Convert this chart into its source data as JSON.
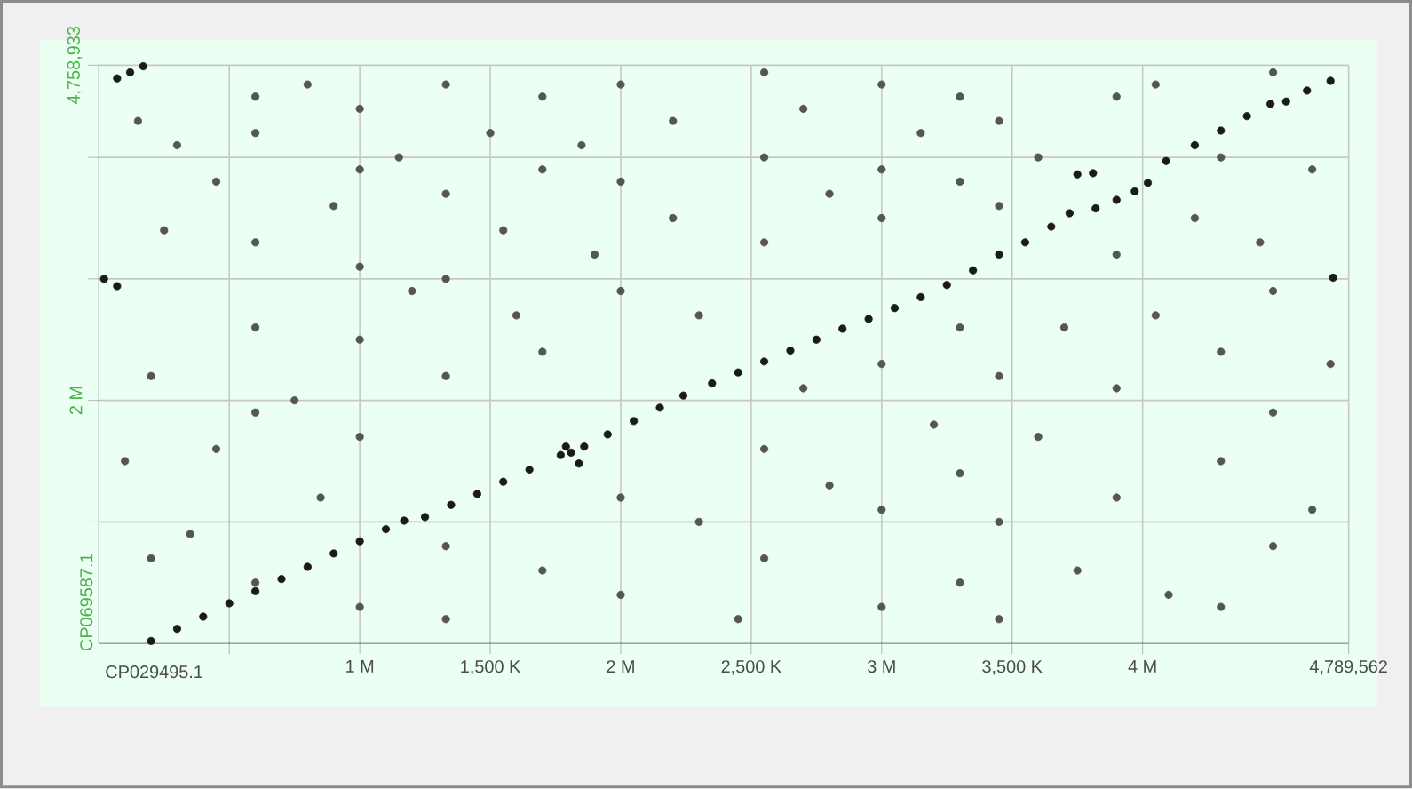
{
  "chart_data": {
    "type": "scatter",
    "xlabel": "CP029495.1",
    "ylabel": "CP069587.1",
    "xlim": [
      0,
      4789562
    ],
    "ylim": [
      0,
      4758933
    ],
    "xticks": [
      {
        "value": 500000,
        "label": null
      },
      {
        "value": 1000000,
        "label": "1 M"
      },
      {
        "value": 1500000,
        "label": "1,500 K"
      },
      {
        "value": 2000000,
        "label": "2 M"
      },
      {
        "value": 2500000,
        "label": "2,500 K"
      },
      {
        "value": 3000000,
        "label": "3 M"
      },
      {
        "value": 3500000,
        "label": "3,500 K"
      },
      {
        "value": 4000000,
        "label": "4 M"
      },
      {
        "value": 4789562,
        "label": "4,789,562"
      }
    ],
    "yticks": [
      {
        "value": 1000000,
        "label": null
      },
      {
        "value": 2000000,
        "label": "2 M"
      },
      {
        "value": 3000000,
        "label": null
      },
      {
        "value": 4000000,
        "label": null
      },
      {
        "value": 4758933,
        "label": "4,758,933"
      }
    ],
    "grid": true,
    "marker": "circle",
    "series": [
      {
        "color": "#555555",
        "x": [
          150000.0,
          300000.0,
          450000.0,
          600000.0,
          600000.0,
          600000.0,
          600000.0,
          600000.0,
          600000.0,
          800000.0,
          900000.0,
          1000000.0,
          1000000.0,
          1000000.0,
          1000000.0,
          1000000.0,
          1000000.0,
          1150000.0,
          1200000.0,
          1330000.0,
          1330000.0,
          1330000.0,
          1330000.0,
          1330000.0,
          1330000.0,
          1500000.0,
          1550000.0,
          1600000.0,
          1700000.0,
          1700000.0,
          1700000.0,
          1700000.0,
          1850000.0,
          1900000.0,
          2000000.0,
          2000000.0,
          2000000.0,
          2000000.0,
          2000000.0,
          2200000.0,
          2200000.0,
          2300000.0,
          2300000.0,
          2450000.0,
          2550000.0,
          2550000.0,
          2550000.0,
          2550000.0,
          2550000.0,
          2700000.0,
          2700000.0,
          2800000.0,
          2800000.0,
          3000000.0,
          3000000.0,
          3000000.0,
          3000000.0,
          3000000.0,
          3000000.0,
          3150000.0,
          3200000.0,
          3300000.0,
          3300000.0,
          3300000.0,
          3300000.0,
          3300000.0,
          3450000.0,
          3450000.0,
          3450000.0,
          3450000.0,
          3450000.0,
          3600000.0,
          3600000.0,
          3700000.0,
          3750000.0,
          3900000.0,
          3900000.0,
          3900000.0,
          3900000.0,
          4050000.0,
          4050000.0,
          4100000.0,
          4200000.0,
          4300000.0,
          4300000.0,
          4300000.0,
          4300000.0,
          4450000.0,
          4500000.0,
          4500000.0,
          4500000.0,
          4500000.0,
          4650000.0,
          4650000.0,
          4720000.0,
          100000.0,
          200000.0,
          250000.0,
          350000.0,
          450000.0,
          750000.0,
          850000.0,
          200000.0
        ],
        "values": [
          4300000.0,
          4100000.0,
          3800000.0,
          4500000.0,
          4200000.0,
          3300000.0,
          2600000.0,
          1900000.0,
          500000.0,
          4600000.0,
          3600000.0,
          4400000.0,
          3900000.0,
          3100000.0,
          2500000.0,
          1700000.0,
          300000.0,
          4000000.0,
          2900000.0,
          4600000.0,
          3700000.0,
          3000000.0,
          2200000.0,
          800000.0,
          200000.0,
          4200000.0,
          3400000.0,
          2700000.0,
          4500000.0,
          3900000.0,
          2400000.0,
          600000.0,
          4100000.0,
          3200000.0,
          4600000.0,
          3800000.0,
          2900000.0,
          1200000.0,
          400000.0,
          4300000.0,
          3500000.0,
          2700000.0,
          1000000.0,
          200000.0,
          4700000.0,
          4000000.0,
          3300000.0,
          1600000.0,
          700000.0,
          4400000.0,
          2100000.0,
          3700000.0,
          1300000.0,
          4600000.0,
          3900000.0,
          3500000.0,
          2300000.0,
          1100000.0,
          300000.0,
          4200000.0,
          1800000.0,
          4500000.0,
          3800000.0,
          2600000.0,
          1400000.0,
          500000.0,
          4300000.0,
          3600000.0,
          2200000.0,
          1000000.0,
          200000.0,
          4000000.0,
          1700000.0,
          2600000.0,
          600000.0,
          4500000.0,
          3200000.0,
          2100000.0,
          1200000.0,
          4600000.0,
          2700000.0,
          400000.0,
          3500000.0,
          4000000.0,
          2400000.0,
          1500000.0,
          300000.0,
          3300000.0,
          4700000.0,
          2900000.0,
          1900000.0,
          800000.0,
          3900000.0,
          1100000.0,
          2300000.0,
          1500000.0,
          2200000.0,
          3400000.0,
          900000.0,
          1600000.0,
          2000000.0,
          1200000.0,
          700000.0
        ]
      },
      {
        "color": "#1a1a1a",
        "x": [
          200000.0,
          300000.0,
          400000.0,
          500000.0,
          600000.0,
          700000.0,
          800000.0,
          900000.0,
          1000000.0,
          1100000.0,
          1170000.0,
          1250000.0,
          1350000.0,
          1450000.0,
          1550000.0,
          1650000.0,
          1770000.0,
          1790000.0,
          1810000.0,
          1840000.0,
          1860000.0,
          1950000.0,
          2050000.0,
          2150000.0,
          2240000.0,
          2350000.0,
          2450000.0,
          2550000.0,
          2650000.0,
          2750000.0,
          2850000.0,
          2950000.0,
          3050000.0,
          3150000.0,
          3250000.0,
          3350000.0,
          3450000.0,
          3550000.0,
          3650000.0,
          3720000.0,
          3750000.0,
          3810000.0,
          3820000.0,
          3900000.0,
          3970000.0,
          4020000.0,
          4090000.0,
          4200000.0,
          4300000.0,
          4400000.0,
          4490000.0,
          4550000.0,
          4630000.0,
          4720000.0,
          70000.0,
          120000.0,
          170000.0,
          20000.0,
          70000.0,
          4730000.0
        ],
        "values": [
          20000.0,
          120000.0,
          220000.0,
          330000.0,
          430000.0,
          530000.0,
          630000.0,
          740000.0,
          840000.0,
          940000.0,
          1010000.0,
          1040000.0,
          1140000.0,
          1230000.0,
          1330000.0,
          1430000.0,
          1550000.0,
          1620000.0,
          1570000.0,
          1480000.0,
          1620000.0,
          1720000.0,
          1830000.0,
          1940000.0,
          2040000.0,
          2140000.0,
          2230000.0,
          2320000.0,
          2410000.0,
          2500000.0,
          2590000.0,
          2670000.0,
          2760000.0,
          2850000.0,
          2950000.0,
          3070000.0,
          3200000.0,
          3300000.0,
          3430000.0,
          3540000.0,
          3860000.0,
          3870000.0,
          3580000.0,
          3650000.0,
          3720000.0,
          3790000.0,
          3970000.0,
          4100000.0,
          4220000.0,
          4340000.0,
          4440000.0,
          4460000.0,
          4550000.0,
          4630000.0,
          4650000.0,
          4700000.0,
          4750000.0,
          3000000.0,
          2940000.0,
          3010000.0
        ]
      }
    ]
  }
}
